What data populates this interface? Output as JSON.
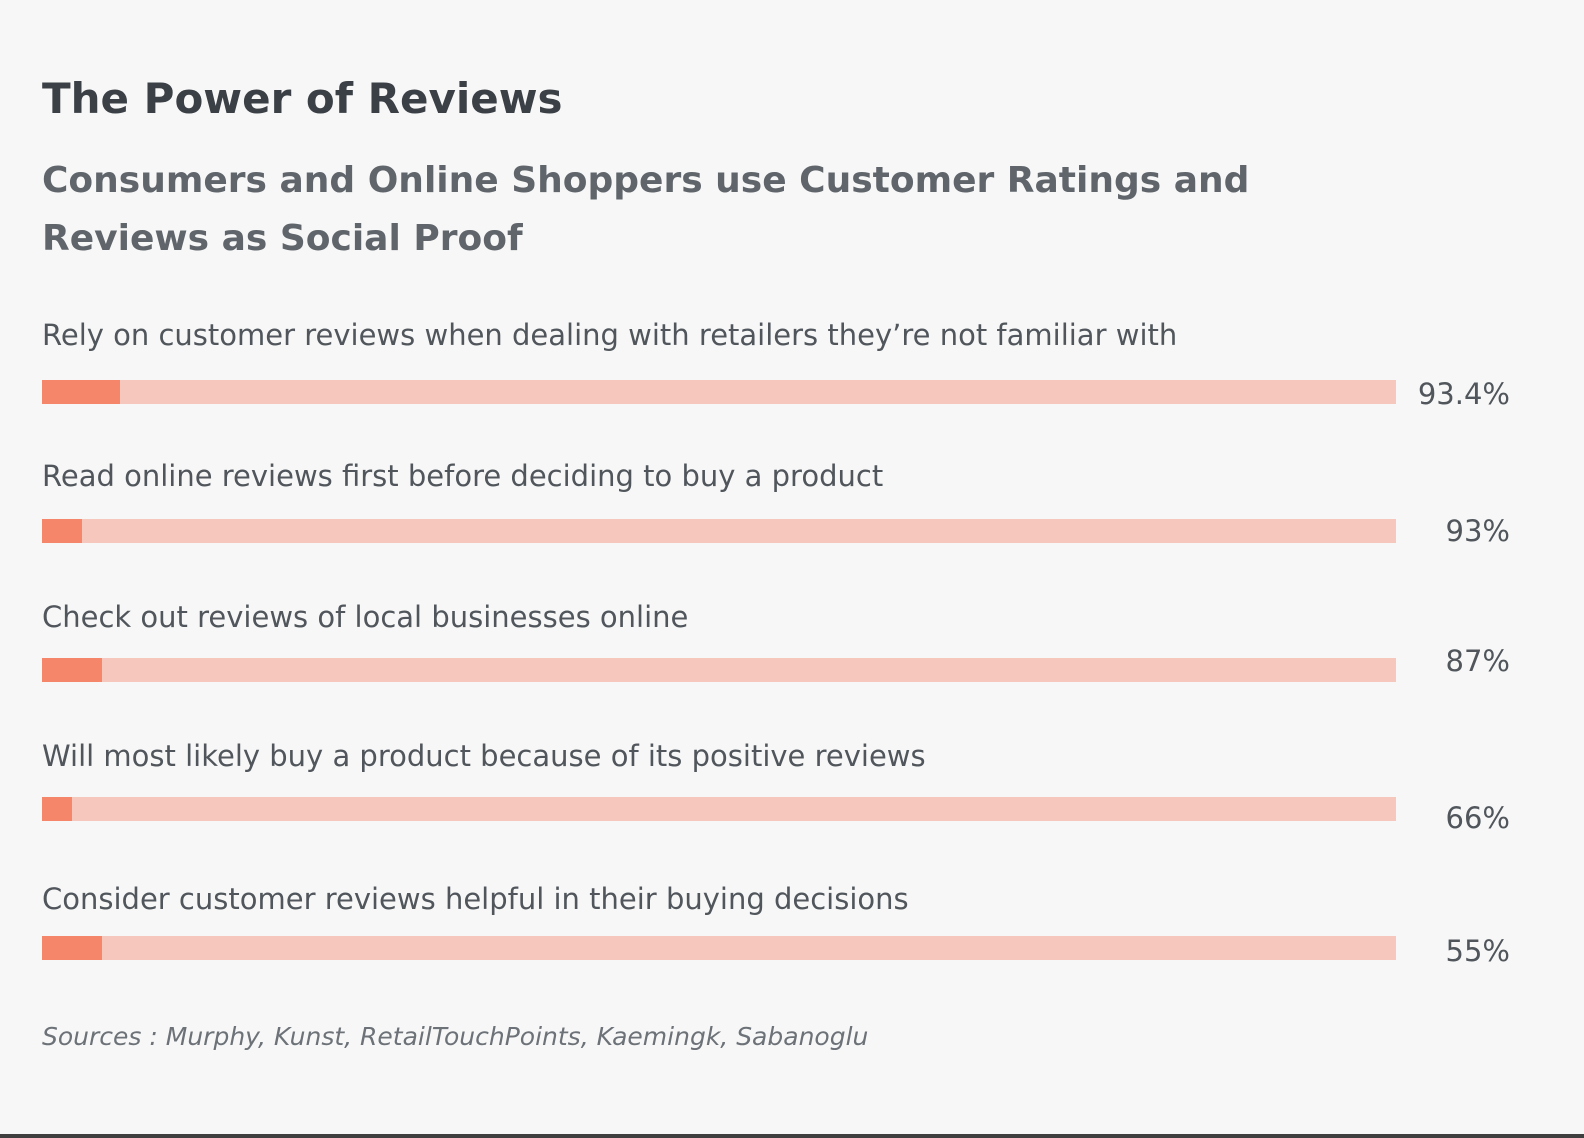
{
  "chart_data": {
    "type": "bar",
    "orientation": "horizontal",
    "title": "The Power of Reviews",
    "subtitle": "Consumers and Online Shoppers use Customer Ratings and Reviews as Social Proof",
    "categories": [
      "Rely on customer reviews when dealing with retailers they’re not familiar with",
      "Read online reviews first before deciding to buy a product",
      "Check out reviews of local businesses online",
      "Will most likely buy a product because of its positive reviews",
      "Consider customer reviews helpful in their buying decisions"
    ],
    "values": [
      93.4,
      93,
      87,
      66,
      55
    ],
    "value_labels": [
      "93.4%",
      "93%",
      "87%",
      "66%",
      "55%"
    ],
    "source": "Sources : Murphy, Kunst, RetailTouchPoints, Kaemingk, Sabanoglu",
    "colors": {
      "track": "#f6c7bc",
      "accent": "#f5866a",
      "background": "#f7f7f7"
    },
    "grid": false,
    "legend": "none"
  }
}
